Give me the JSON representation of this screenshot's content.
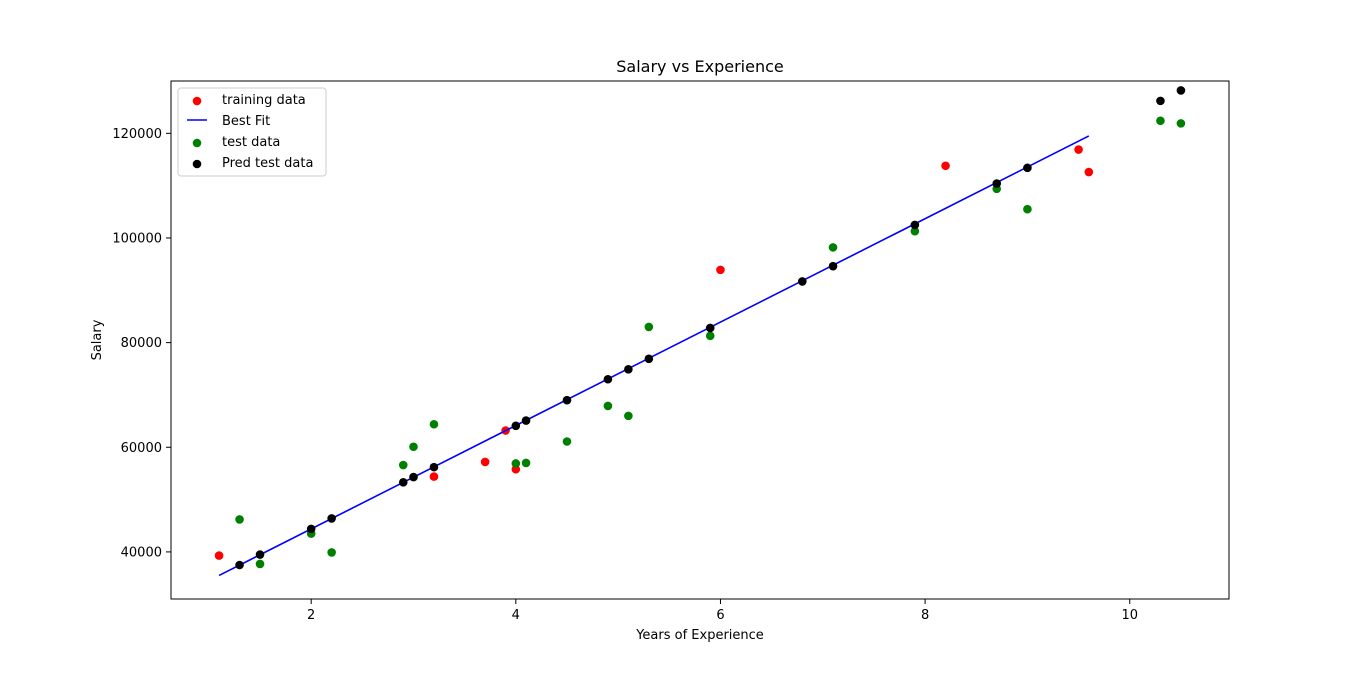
{
  "chart_data": {
    "type": "scatter",
    "title": "Salary vs Experience",
    "xlabel": "Years of Experience",
    "ylabel": "Salary",
    "xlim": [
      0.63,
      10.97
    ],
    "ylim": [
      31000,
      130000
    ],
    "xticks": [
      2,
      4,
      6,
      8,
      10
    ],
    "yticks": [
      40000,
      60000,
      80000,
      100000,
      120000
    ],
    "grid": false,
    "legend_position": "top-left",
    "series": [
      {
        "name": "training data",
        "type": "scatter",
        "color": "#ff0000",
        "x": [
          1.1,
          3.2,
          3.7,
          3.9,
          4.0,
          6.0,
          8.2,
          9.5,
          9.6
        ],
        "y": [
          39300,
          54400,
          57200,
          63200,
          55800,
          93900,
          113800,
          116900,
          112600
        ]
      },
      {
        "name": "Best Fit",
        "type": "line",
        "color": "#0000ff",
        "x": [
          1.1,
          9.6
        ],
        "y": [
          35500,
          119500
        ]
      },
      {
        "name": "test data",
        "type": "scatter",
        "color": "#008000",
        "x": [
          1.3,
          1.5,
          2.0,
          2.2,
          2.9,
          3.0,
          3.2,
          4.0,
          4.1,
          4.5,
          4.9,
          5.1,
          5.3,
          5.9,
          7.1,
          7.9,
          8.7,
          9.0,
          10.3,
          10.5
        ],
        "y": [
          46200,
          37700,
          43500,
          39900,
          56600,
          60100,
          64400,
          56900,
          57000,
          61100,
          67900,
          66000,
          83000,
          81300,
          98200,
          101300,
          109400,
          105500,
          122400,
          121900
        ]
      },
      {
        "name": "Pred test data",
        "type": "scatter",
        "color": "#000000",
        "x": [
          1.3,
          1.5,
          2.0,
          2.2,
          2.9,
          3.0,
          3.2,
          4.0,
          4.1,
          4.5,
          4.9,
          5.1,
          5.3,
          5.9,
          6.8,
          7.1,
          7.9,
          8.7,
          9.0,
          10.3,
          10.5
        ],
        "y": [
          37500,
          39500,
          44400,
          46400,
          53300,
          54300,
          56200,
          64100,
          65100,
          69000,
          73000,
          74900,
          76900,
          82800,
          91700,
          94600,
          102500,
          110400,
          113400,
          126200,
          128200
        ]
      }
    ]
  }
}
